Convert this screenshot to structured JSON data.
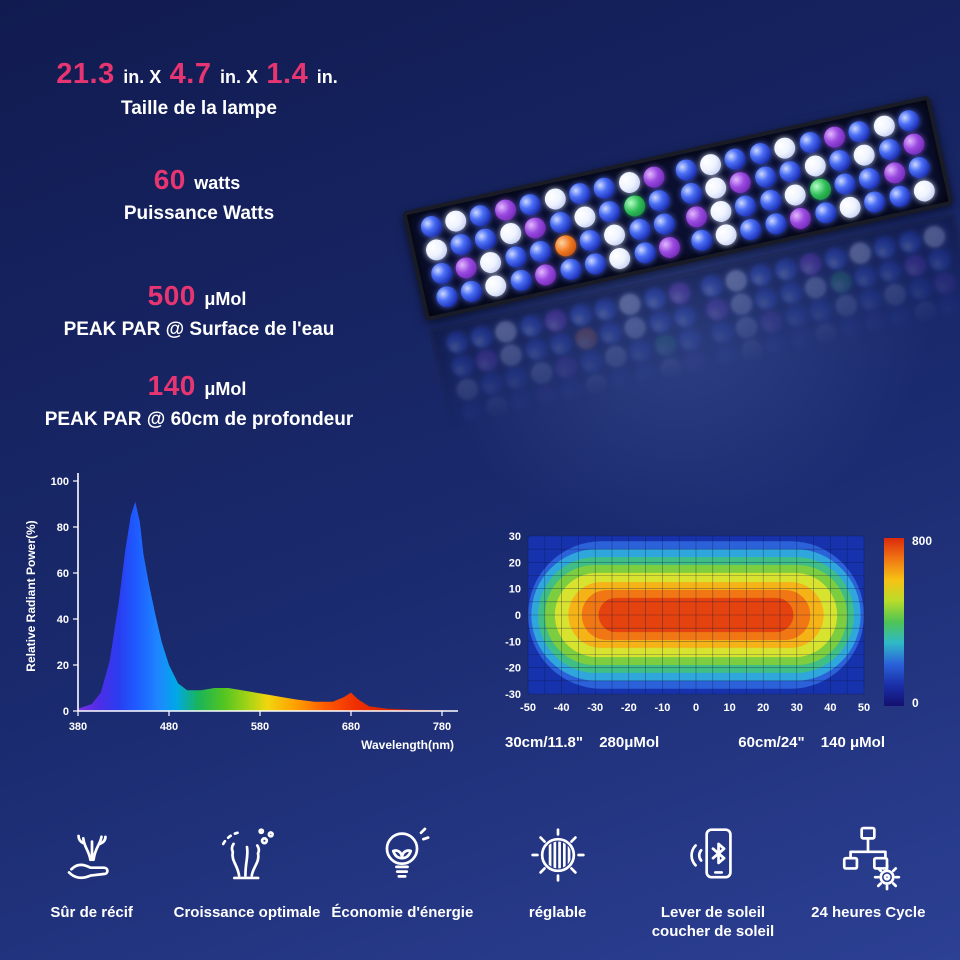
{
  "colors": {
    "accent_pink": "#e73571",
    "background_top": "#111b50",
    "background_bottom": "#2c4094",
    "text": "#ffffff"
  },
  "specs": {
    "dimensions": {
      "v1": "21.3",
      "u1": "in. X",
      "v2": "4.7",
      "u2": "in. X",
      "v3": "1.4",
      "u3": "in.",
      "label": "Taille de la lampe"
    },
    "power": {
      "value": "60",
      "unit": "watts",
      "label": "Puissance Watts"
    },
    "par_surface": {
      "value": "500",
      "unit": "μMol",
      "label": "PEAK PAR @ Surface de l'eau"
    },
    "par_depth": {
      "value": "140",
      "unit": "μMol",
      "label": "PEAK PAR @ 60cm de profondeur"
    }
  },
  "light": {
    "name": "aquarium-led-light-bar",
    "led_palette": {
      "b": "#2e4fe0",
      "w": "#eef3ff",
      "v": "#9a4ae0",
      "g": "#2fbe58",
      "r": "#f07820"
    },
    "led_rows": [
      "bwbvbwbbwvbwbbwbvbwb",
      "wbbwvbwbgbbwvbbwbwbv",
      "bvwbbrbwbbvwbbwgbbvb",
      "bbwbvbbwbvbwbbvbwbbw"
    ]
  },
  "chart_data": [
    {
      "type": "area",
      "title": "LED spectrum",
      "xlabel": "Wavelength(nm)",
      "ylabel": "Relative Radiant Power(%)",
      "xlim": [
        380,
        780
      ],
      "ylim": [
        0,
        100
      ],
      "x_ticks": [
        380,
        480,
        580,
        680,
        780
      ],
      "y_ticks": [
        0,
        20,
        40,
        60,
        80,
        100
      ],
      "points": [
        [
          380,
          1
        ],
        [
          395,
          3
        ],
        [
          405,
          8
        ],
        [
          415,
          22
        ],
        [
          425,
          48
        ],
        [
          432,
          70
        ],
        [
          438,
          85
        ],
        [
          443,
          91
        ],
        [
          448,
          82
        ],
        [
          452,
          68
        ],
        [
          458,
          55
        ],
        [
          465,
          42
        ],
        [
          472,
          30
        ],
        [
          480,
          20
        ],
        [
          490,
          12
        ],
        [
          500,
          9
        ],
        [
          515,
          9
        ],
        [
          530,
          10
        ],
        [
          545,
          10
        ],
        [
          560,
          9
        ],
        [
          575,
          8
        ],
        [
          590,
          7
        ],
        [
          605,
          6
        ],
        [
          620,
          5
        ],
        [
          640,
          4
        ],
        [
          660,
          4
        ],
        [
          672,
          6
        ],
        [
          680,
          8
        ],
        [
          688,
          5
        ],
        [
          700,
          2
        ],
        [
          720,
          1
        ],
        [
          750,
          0.5
        ],
        [
          780,
          0.3
        ]
      ],
      "fill_gradient": [
        {
          "o": 0.0,
          "c": "#7b2fe0"
        },
        {
          "o": 0.06,
          "c": "#4b2ee8"
        },
        {
          "o": 0.11,
          "c": "#2b3cf0"
        },
        {
          "o": 0.16,
          "c": "#1e5bff"
        },
        {
          "o": 0.22,
          "c": "#1e86ff"
        },
        {
          "o": 0.27,
          "c": "#00a8e8"
        },
        {
          "o": 0.33,
          "c": "#19b45a"
        },
        {
          "o": 0.4,
          "c": "#52c422"
        },
        {
          "o": 0.47,
          "c": "#a8d414"
        },
        {
          "o": 0.52,
          "c": "#f0d60e"
        },
        {
          "o": 0.6,
          "c": "#ff9e00"
        },
        {
          "o": 0.68,
          "c": "#ff5a00"
        },
        {
          "o": 0.76,
          "c": "#f03000"
        },
        {
          "o": 1.0,
          "c": "#b31200"
        }
      ]
    },
    {
      "type": "heatmap",
      "title": "PAR distribution map",
      "xlim": [
        -50,
        50
      ],
      "ylim": [
        -30,
        30
      ],
      "x_ticks": [
        -50,
        -40,
        -30,
        -20,
        -10,
        0,
        10,
        20,
        30,
        40,
        50
      ],
      "y_ticks": [
        30,
        20,
        10,
        0,
        -10,
        -20,
        -30
      ],
      "levels": [
        {
          "a": 50,
          "b": 30,
          "color": "#1633ad"
        },
        {
          "a": 50,
          "b": 28,
          "color": "#2b62d9"
        },
        {
          "a": 49,
          "b": 25,
          "color": "#2fa7dc"
        },
        {
          "a": 47,
          "b": 22,
          "color": "#3fbf86"
        },
        {
          "a": 45,
          "b": 19,
          "color": "#7ccd3f"
        },
        {
          "a": 42,
          "b": 16,
          "color": "#d8e32f"
        },
        {
          "a": 38,
          "b": 12.5,
          "color": "#f6b318"
        },
        {
          "a": 34,
          "b": 9.5,
          "color": "#f07714"
        },
        {
          "a": 29,
          "b": 6.5,
          "color": "#e4420e"
        }
      ],
      "colorbar": {
        "max": "800",
        "min": "0",
        "colors": [
          "#dc2a0a",
          "#f07714",
          "#f6c214",
          "#b8dc2a",
          "#4fc454",
          "#2fb9c8",
          "#2b62d9",
          "#1a2fa8",
          "#14106e"
        ]
      },
      "footnotes": [
        {
          "depth": "30cm/11.8\"",
          "par": "280μMol"
        },
        {
          "depth": "60cm/24\"",
          "par": "140 μMol"
        }
      ]
    }
  ],
  "features": [
    {
      "icon": "reef-safe-hand-icon",
      "label": "Sûr de récif"
    },
    {
      "icon": "coral-growth-icon",
      "label": "Croissance optimale"
    },
    {
      "icon": "energy-saving-bulb-icon",
      "label": "Économie d'énergie"
    },
    {
      "icon": "adjustable-dial-icon",
      "label": "réglable"
    },
    {
      "icon": "phone-bluetooth-icon",
      "label": "Lever de soleil coucher de soleil"
    },
    {
      "icon": "cycle-network-icon",
      "label": "24 heures Cycle"
    }
  ]
}
